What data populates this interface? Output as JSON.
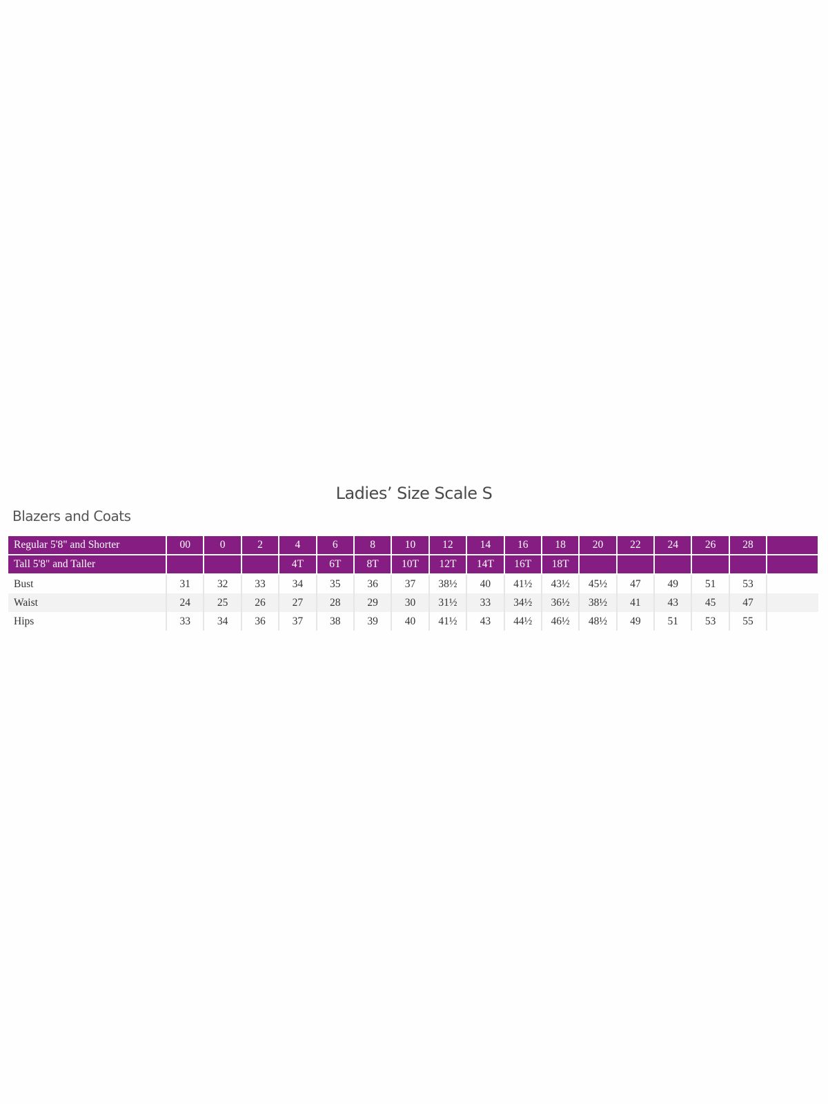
{
  "title": "Ladies’ Size Scale S",
  "subtitle": "Blazers and Coats",
  "header_color": "#851d83",
  "rows": [
    {
      "label": "Regular 5'8\" and Shorter",
      "header": true,
      "cells": [
        "00",
        "0",
        "2",
        "4",
        "6",
        "8",
        "10",
        "12",
        "14",
        "16",
        "18",
        "20",
        "22",
        "24",
        "26",
        "28",
        ""
      ]
    },
    {
      "label": "Tall 5'8\" and Taller",
      "header": true,
      "cells": [
        "",
        "",
        "",
        "4T",
        "6T",
        "8T",
        "10T",
        "12T",
        "14T",
        "16T",
        "18T",
        "",
        "",
        "",
        "",
        "",
        ""
      ]
    },
    {
      "label": "Bust",
      "cells": [
        "31",
        "32",
        "33",
        "34",
        "35",
        "36",
        "37",
        "38½",
        "40",
        "41½",
        "43½",
        "45½",
        "47",
        "49",
        "51",
        "53",
        ""
      ]
    },
    {
      "label": "Waist",
      "cells": [
        "24",
        "25",
        "26",
        "27",
        "28",
        "29",
        "30",
        "31½",
        "33",
        "34½",
        "36½",
        "38½",
        "41",
        "43",
        "45",
        "47",
        ""
      ]
    },
    {
      "label": "Hips",
      "cells": [
        "33",
        "34",
        "36",
        "37",
        "38",
        "39",
        "40",
        "41½",
        "43",
        "44½",
        "46½",
        "48½",
        "49",
        "51",
        "53",
        "55",
        ""
      ]
    }
  ]
}
